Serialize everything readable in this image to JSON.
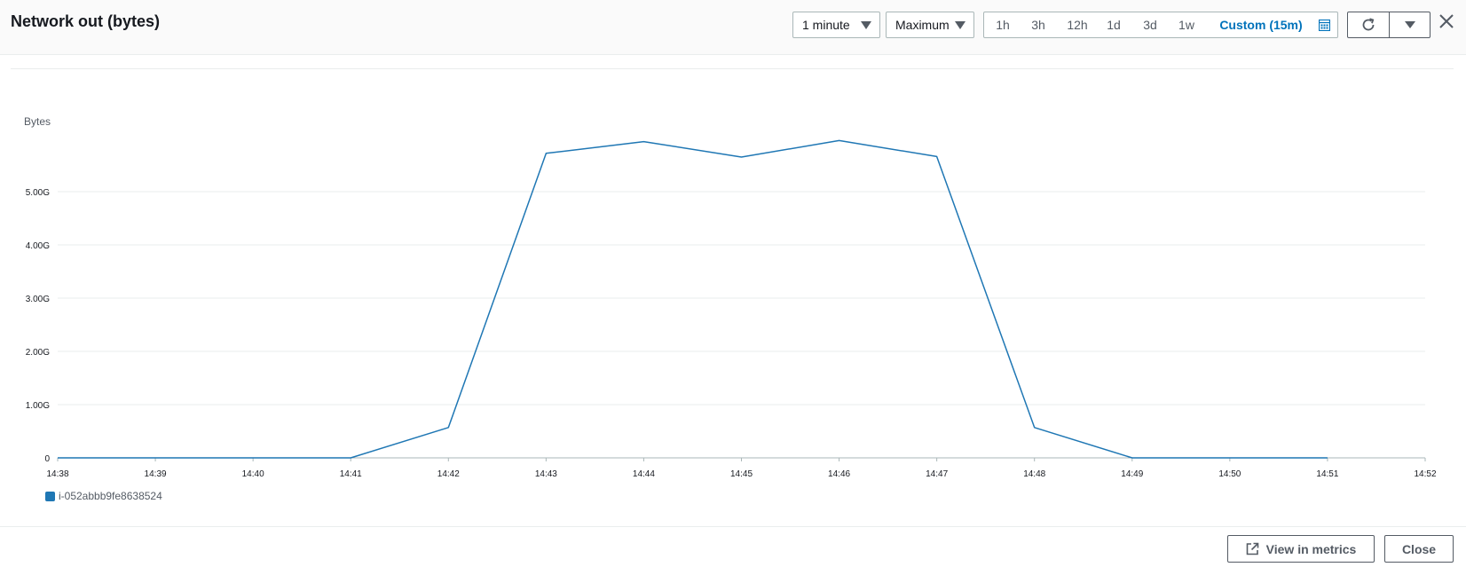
{
  "header": {
    "title": "Network out (bytes)",
    "period_select": "1 minute",
    "statistic_select": "Maximum",
    "ranges": [
      "1h",
      "3h",
      "12h",
      "1d",
      "3d",
      "1w"
    ],
    "custom_range": "Custom (15m)"
  },
  "icons": {
    "calendar": "calendar-icon",
    "refresh": "refresh-icon",
    "more": "caret-down-icon",
    "close": "close-icon",
    "external": "external-link-icon"
  },
  "colors": {
    "series": "#1f77b4",
    "accent": "#0073bb"
  },
  "chart_data": {
    "type": "line",
    "ylabel": "Bytes",
    "x": [
      "14:38",
      "14:39",
      "14:40",
      "14:41",
      "14:42",
      "14:43",
      "14:44",
      "14:45",
      "14:46",
      "14:47",
      "14:48",
      "14:49",
      "14:50",
      "14:51",
      "14:52"
    ],
    "yticks": [
      0,
      1,
      2,
      3,
      4,
      5
    ],
    "ytick_labels": [
      "0",
      "1.00G",
      "2.00G",
      "3.00G",
      "4.00G",
      "5.00G"
    ],
    "ylim": [
      0,
      6.6
    ],
    "grid": true,
    "legend": "bottom-left",
    "series": [
      {
        "name": "i-052abbb9fe8638524",
        "values": [
          0,
          0,
          0,
          0,
          0.57,
          5.72,
          5.94,
          5.65,
          5.96,
          5.66,
          0.57,
          0,
          0,
          0,
          null
        ]
      }
    ]
  },
  "footer": {
    "view_metrics_label": "View in metrics",
    "close_label": "Close"
  }
}
